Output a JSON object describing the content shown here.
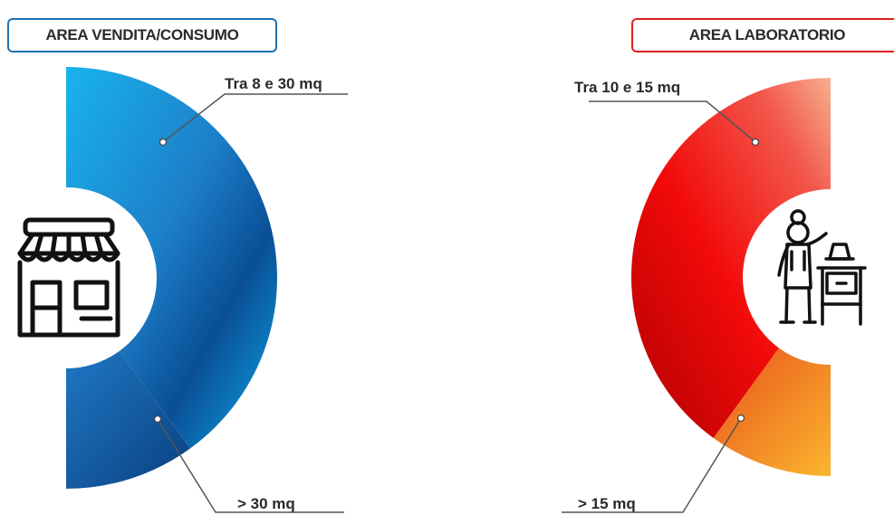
{
  "chart_data": [
    {
      "type": "pie",
      "title": "AREA VENDITA/CONSUMO",
      "categories": [
        "Tra 8 e 30 mq",
        "> 30 mq"
      ],
      "values": [
        80,
        20
      ],
      "colors": [
        "#0b62ad",
        "#1a5da6"
      ],
      "icon": "shop-icon"
    },
    {
      "type": "pie",
      "title": "AREA LABORATORIO",
      "categories": [
        "Tra 10 e 15 mq",
        "> 15 mq"
      ],
      "values": [
        80,
        20
      ],
      "colors": [
        "#e8140c",
        "#f28a1e"
      ],
      "icon": "baker-icon"
    }
  ]
}
